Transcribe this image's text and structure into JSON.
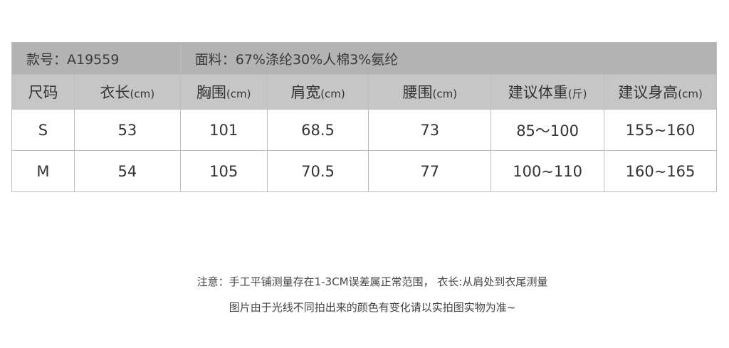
{
  "info": {
    "style_no": "款号：A19559",
    "fabric": "面料：67%涤纶30%人棉3%氨纶"
  },
  "headers": [
    {
      "label": "尺码",
      "unit": ""
    },
    {
      "label": "衣长",
      "unit": "(cm)"
    },
    {
      "label": "胸围",
      "unit": "(cm)"
    },
    {
      "label": "肩宽",
      "unit": "(cm)"
    },
    {
      "label": "腰围",
      "unit": "(cm)"
    },
    {
      "label": "建议体重",
      "unit": "(斤)"
    },
    {
      "label": "建议身高",
      "unit": "(cm)"
    }
  ],
  "rows": [
    [
      "S",
      "53",
      "101",
      "68.5",
      "73",
      "85～100",
      "155~160"
    ],
    [
      "M",
      "54",
      "105",
      "70.5",
      "77",
      "100~110",
      "160~165"
    ]
  ],
  "notes": [
    "注意：手工平铺测量存在1-3CM误差属正常范围， 衣长:从肩处到衣尾测量",
    "图片由于光线不同拍出来的颜色有变化请以实拍图实物为准~"
  ]
}
